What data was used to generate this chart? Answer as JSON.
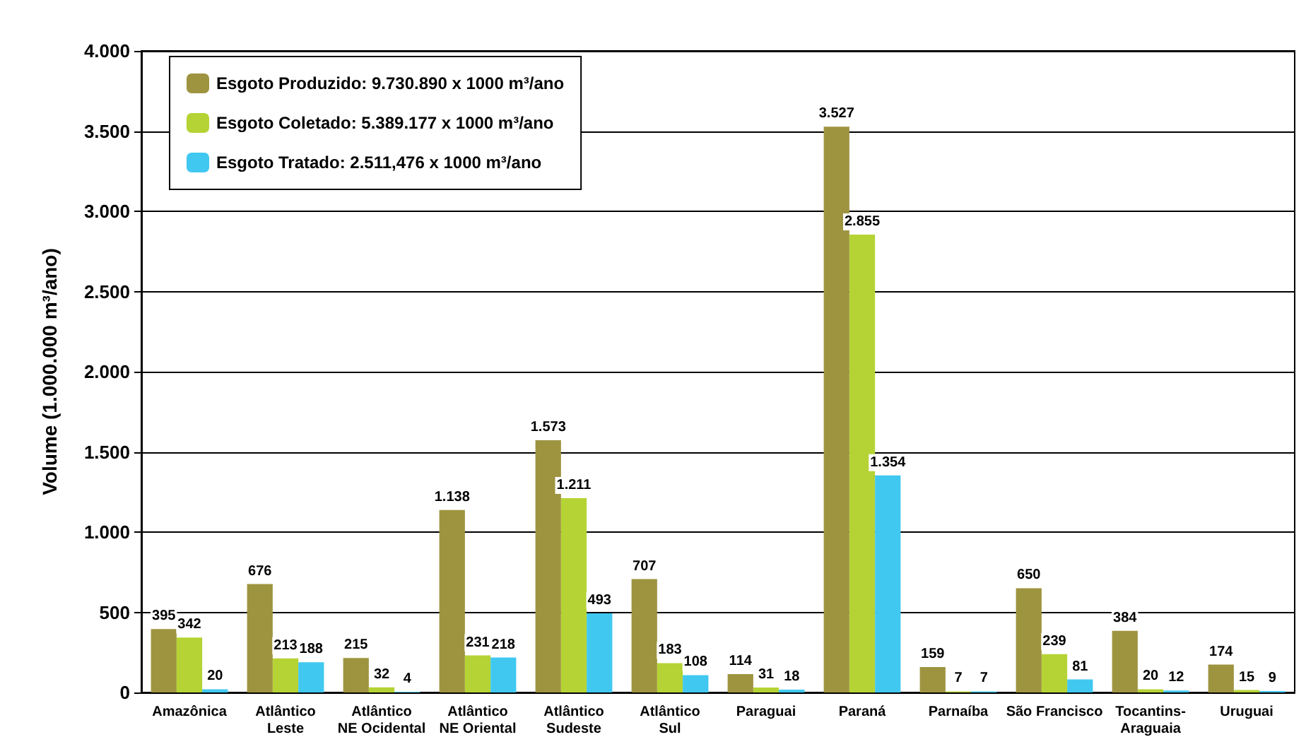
{
  "chart_data": {
    "type": "bar",
    "ylabel": "Volume (1.000.000 m³/ano)",
    "categories": [
      "Amazônica",
      "Atlântico\nLeste",
      "Atlântico\nNE Ocidental",
      "Atlântico\nNE Oriental",
      "Atlântico\nSudeste",
      "Atlântico\nSul",
      "Paraguai",
      "Paraná",
      "Parnaíba",
      "São Francisco",
      "Tocantins-\nAraguaia",
      "Uruguai"
    ],
    "series": [
      {
        "name": "Esgoto Produzido: 9.730.890 x 1000 m³/ano",
        "color": "#9e9440",
        "values": [
          395,
          676,
          215,
          1138,
          1573,
          707,
          114,
          3527,
          159,
          650,
          384,
          174
        ],
        "value_labels": [
          "395",
          "676",
          "215",
          "1.138",
          "1.573",
          "707",
          "114",
          "3.527",
          "159",
          "650",
          "384",
          "174"
        ]
      },
      {
        "name": "Esgoto Coletado: 5.389.177 x 1000 m³/ano",
        "color": "#b5d334",
        "values": [
          342,
          213,
          32,
          231,
          1211,
          183,
          31,
          2855,
          7,
          239,
          20,
          15
        ],
        "value_labels": [
          "342",
          "213",
          "32",
          "231",
          "1.211",
          "183",
          "31",
          "2.855",
          "7",
          "239",
          "20",
          "15"
        ]
      },
      {
        "name": "Esgoto Tratado: 2.511,476 x 1000 m³/ano",
        "color": "#41c8f0",
        "values": [
          20,
          188,
          4,
          218,
          493,
          108,
          18,
          1354,
          7,
          81,
          12,
          9
        ],
        "value_labels": [
          "20",
          "188",
          "4",
          "218",
          "493",
          "108",
          "18",
          "1.354",
          "7",
          "81",
          "12",
          "9"
        ]
      }
    ],
    "ylim": [
      0,
      4000
    ],
    "yticks": [
      {
        "value": 0,
        "label": "0"
      },
      {
        "value": 500,
        "label": "500"
      },
      {
        "value": 1000,
        "label": "1.000"
      },
      {
        "value": 1500,
        "label": "1.500"
      },
      {
        "value": 2000,
        "label": "2.000"
      },
      {
        "value": 2500,
        "label": "2.500"
      },
      {
        "value": 3000,
        "label": "3.000"
      },
      {
        "value": 3500,
        "label": "3.500"
      },
      {
        "value": 4000,
        "label": "4.000"
      }
    ],
    "grid": "y",
    "legend": "top left"
  }
}
